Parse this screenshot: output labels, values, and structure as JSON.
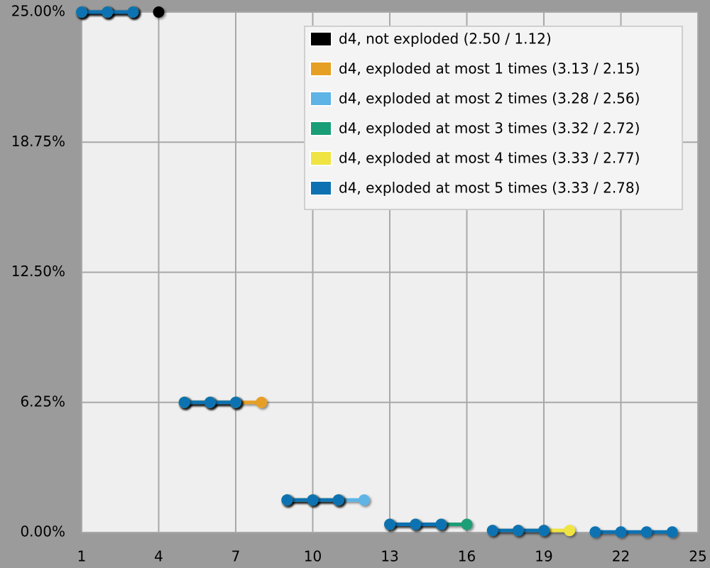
{
  "chart_data": {
    "type": "line",
    "x": [
      1,
      2,
      3,
      4,
      5,
      6,
      7,
      8,
      9,
      10,
      11,
      12,
      13,
      14,
      15,
      16,
      17,
      18,
      19,
      20,
      21,
      22,
      23,
      24
    ],
    "series": [
      {
        "name": "d4, not exploded (2.50 / 1.12)",
        "color": "#000000",
        "values": [
          25,
          25,
          25,
          25,
          null,
          null,
          null,
          null,
          null,
          null,
          null,
          null,
          null,
          null,
          null,
          null,
          null,
          null,
          null,
          null,
          null,
          null,
          null,
          null
        ]
      },
      {
        "name": "d4, exploded at most 1 times (3.13 / 2.15)",
        "color": "#e69f25",
        "values": [
          25,
          25,
          25,
          null,
          6.25,
          6.25,
          6.25,
          6.25,
          null,
          null,
          null,
          null,
          null,
          null,
          null,
          null,
          null,
          null,
          null,
          null,
          null,
          null,
          null,
          null
        ]
      },
      {
        "name": "d4, exploded at most 2 times (3.28 / 2.56)",
        "color": "#5db4e5",
        "values": [
          25,
          25,
          25,
          null,
          6.25,
          6.25,
          6.25,
          null,
          1.5625,
          1.5625,
          1.5625,
          1.5625,
          null,
          null,
          null,
          null,
          null,
          null,
          null,
          null,
          null,
          null,
          null,
          null
        ]
      },
      {
        "name": "d4, exploded at most 3 times (3.32 / 2.72)",
        "color": "#1a9e77",
        "values": [
          25,
          25,
          25,
          null,
          6.25,
          6.25,
          6.25,
          null,
          1.5625,
          1.5625,
          1.5625,
          null,
          0.390625,
          0.390625,
          0.390625,
          0.390625,
          null,
          null,
          null,
          null,
          null,
          null,
          null,
          null
        ]
      },
      {
        "name": "d4, exploded at most 4 times (3.33 / 2.77)",
        "color": "#f0e442",
        "values": [
          25,
          25,
          25,
          null,
          6.25,
          6.25,
          6.25,
          null,
          1.5625,
          1.5625,
          1.5625,
          null,
          0.390625,
          0.390625,
          0.390625,
          null,
          0.09765625,
          0.09765625,
          0.09765625,
          0.09765625,
          null,
          null,
          null,
          null
        ]
      },
      {
        "name": "d4, exploded at most 5 times (3.33 / 2.78)",
        "color": "#0e72b2",
        "values": [
          25,
          25,
          25,
          null,
          6.25,
          6.25,
          6.25,
          null,
          1.5625,
          1.5625,
          1.5625,
          null,
          0.390625,
          0.390625,
          0.390625,
          null,
          0.09765625,
          0.09765625,
          0.09765625,
          null,
          0.0244140625,
          0.0244140625,
          0.0244140625,
          0.0244140625
        ]
      }
    ],
    "xlim": [
      1,
      25
    ],
    "xticks": [
      1,
      4,
      7,
      10,
      13,
      16,
      19,
      22,
      25
    ],
    "ylim": [
      0,
      25
    ],
    "yticks": [
      {
        "value": 0,
        "label": "0.00%"
      },
      {
        "value": 6.25,
        "label": "6.25%"
      },
      {
        "value": 12.5,
        "label": "12.50%"
      },
      {
        "value": 18.75,
        "label": "18.75%"
      },
      {
        "value": 25,
        "label": "25.00%"
      }
    ],
    "grid": true,
    "legend": "top-right"
  }
}
